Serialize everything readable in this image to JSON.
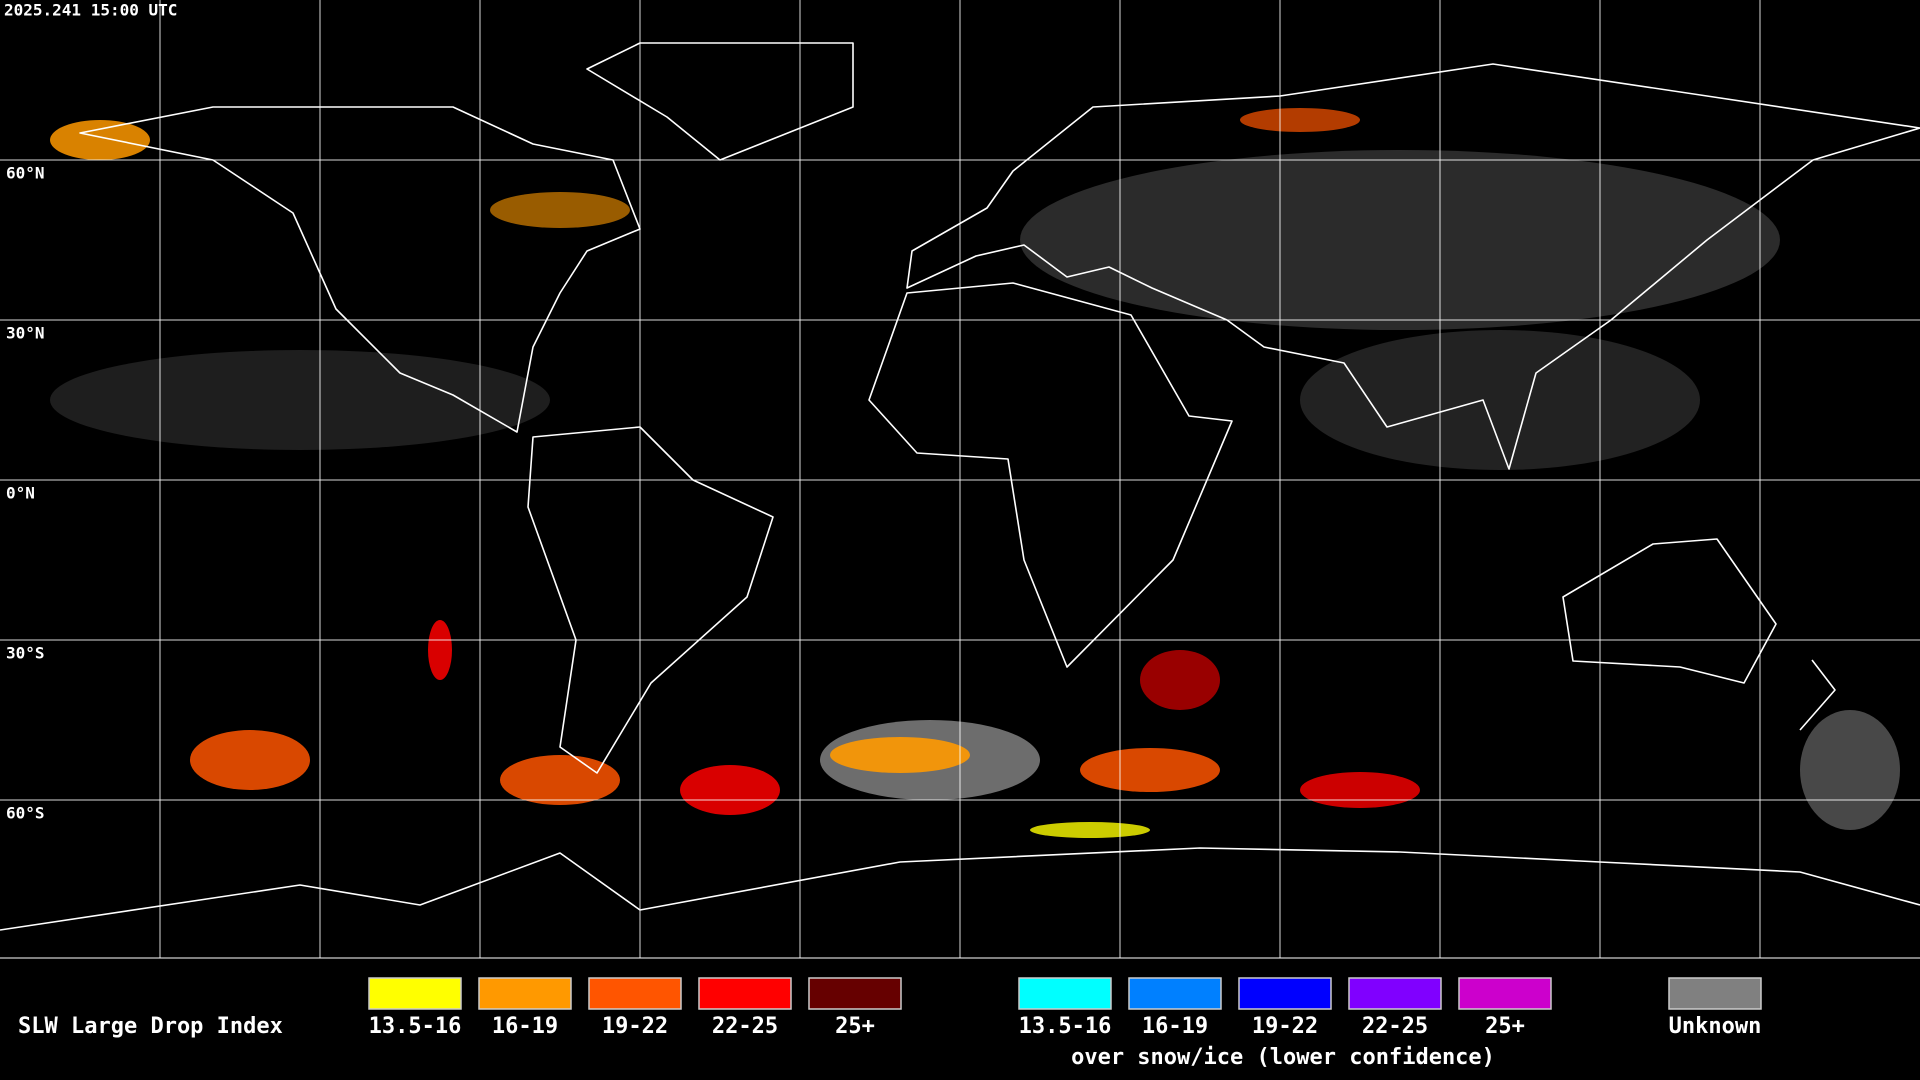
{
  "header": {
    "timestamp": "2025.241 15:00 UTC"
  },
  "map": {
    "latitude_labels": [
      "60°N",
      "30°N",
      "0°N",
      "30°S",
      "60°S"
    ]
  },
  "legend": {
    "title": "SLW Large Drop Index",
    "items": [
      {
        "label": "13.5-16",
        "color": "#ffff00"
      },
      {
        "label": "16-19",
        "color": "#ff9900"
      },
      {
        "label": "19-22",
        "color": "#ff5500"
      },
      {
        "label": "22-25",
        "color": "#ff0000"
      },
      {
        "label": "25+",
        "color": "#660000"
      }
    ],
    "snow_items": [
      {
        "label": "13.5-16",
        "color": "#00ffff"
      },
      {
        "label": "16-19",
        "color": "#0080ff"
      },
      {
        "label": "19-22",
        "color": "#0000ff"
      },
      {
        "label": "22-25",
        "color": "#8000ff"
      },
      {
        "label": "25+",
        "color": "#cc00cc"
      }
    ],
    "snow_caption": "over snow/ice (lower confidence)",
    "unknown": {
      "label": "Unknown",
      "color": "#808080"
    }
  }
}
